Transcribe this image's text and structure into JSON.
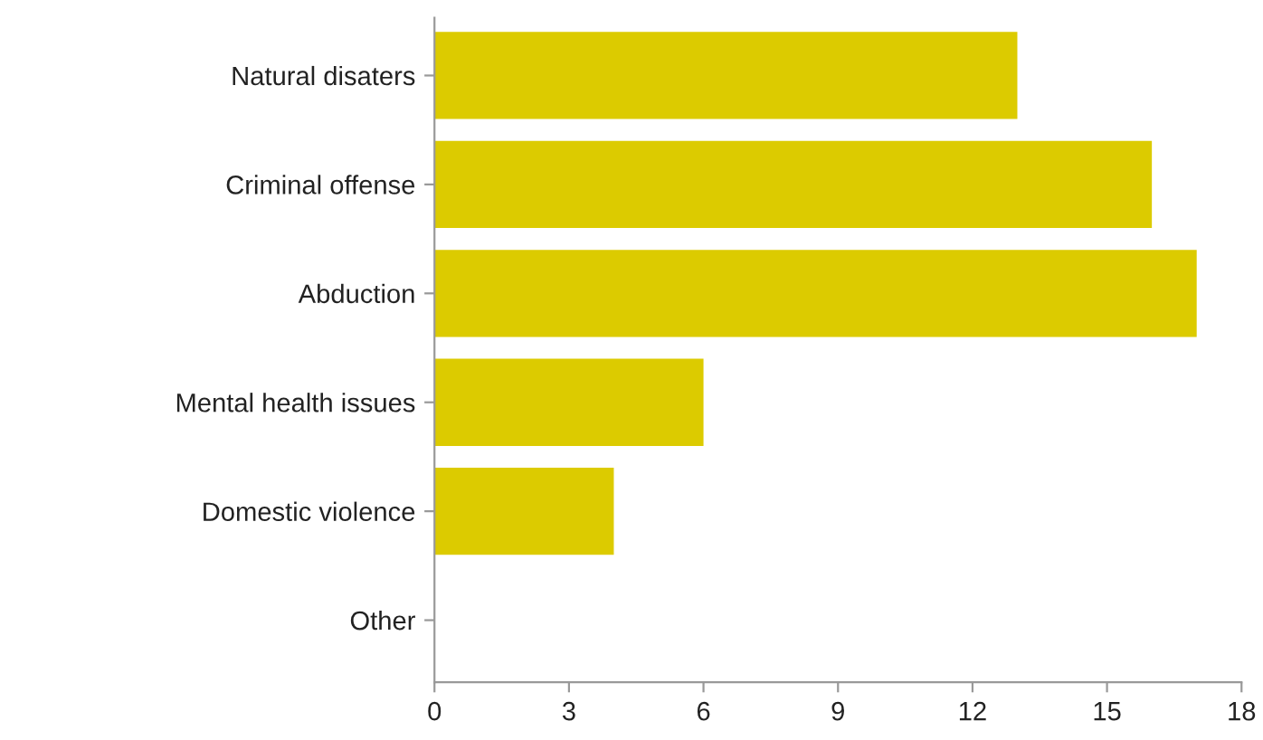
{
  "chart_data": {
    "type": "bar",
    "orientation": "horizontal",
    "categories": [
      "Natural disaters",
      "Criminal offense",
      "Abduction",
      "Mental health issues",
      "Domestic violence",
      "Other"
    ],
    "values": [
      13,
      16,
      17,
      6,
      4,
      0
    ],
    "color": "#dccb00",
    "xlim": [
      0,
      18
    ],
    "xticks": [
      0,
      3,
      6,
      9,
      12,
      15,
      18
    ],
    "grid": false,
    "legend": false
  }
}
